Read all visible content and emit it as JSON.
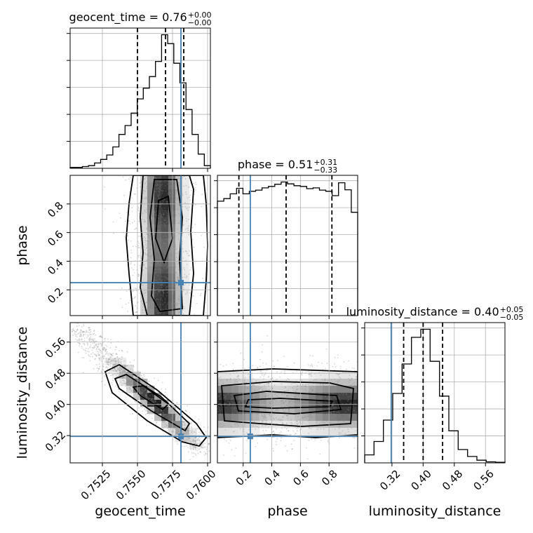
{
  "chart_data": {
    "type": "corner",
    "parameters": [
      "geocent_time",
      "phase",
      "luminosity_distance"
    ],
    "ranges": {
      "geocent_time": [
        0.7502,
        0.7602
      ],
      "phase": [
        0.02,
        1.0
      ],
      "luminosity_distance": [
        0.25,
        0.61
      ]
    },
    "ticks": {
      "geocent_time": [
        0.7525,
        0.755,
        0.7575,
        0.76
      ],
      "phase": [
        0.2,
        0.4,
        0.6,
        0.8
      ],
      "luminosity_distance": [
        0.32,
        0.4,
        0.48,
        0.56
      ]
    },
    "tick_labels": {
      "geocent_time": [
        "0.7525",
        "0.7550",
        "0.7575",
        "0.7600"
      ],
      "phase": [
        "0.2",
        "0.4",
        "0.6",
        "0.8"
      ],
      "luminosity_distance": [
        "0.32",
        "0.40",
        "0.48",
        "0.56"
      ]
    },
    "axis_labels": {
      "geocent_time": "geocent_time",
      "phase": "phase",
      "luminosity_distance": "luminosity_distance"
    },
    "titles": [
      {
        "param": "geocent_time",
        "text": "geocent_time = 0.76",
        "sup": "+0.00",
        "sub": "−0.00"
      },
      {
        "param": "phase",
        "text": "phase = 0.51",
        "sup": "+0.31",
        "sub": "−0.33"
      },
      {
        "param": "luminosity_distance",
        "text": "luminosity_distance = 0.40",
        "sup": "+0.05",
        "sub": "−0.05"
      }
    ],
    "truths": {
      "geocent_time": 0.7581,
      "phase": 0.25,
      "luminosity_distance": 0.318
    },
    "quantiles": {
      "geocent_time": [
        0.755,
        0.757,
        0.7583
      ],
      "phase": [
        0.17,
        0.5,
        0.82
      ],
      "luminosity_distance": [
        0.35,
        0.4,
        0.45
      ]
    },
    "histograms": {
      "geocent_time": [
        1,
        1,
        2,
        3,
        6,
        10,
        15,
        24,
        38,
        48,
        62,
        78,
        90,
        103,
        120,
        150,
        140,
        118,
        96,
        66,
        38,
        16,
        3
      ],
      "phase": [
        310,
        317,
        330,
        345,
        330,
        337,
        340,
        346,
        350,
        356,
        362,
        357,
        352,
        350,
        344,
        346,
        340,
        337,
        325,
        360,
        341,
        280
      ],
      "luminosity_distance": [
        15,
        40,
        80,
        130,
        185,
        235,
        250,
        190,
        125,
        60,
        25,
        12,
        5,
        2,
        1
      ]
    },
    "grid": true
  }
}
